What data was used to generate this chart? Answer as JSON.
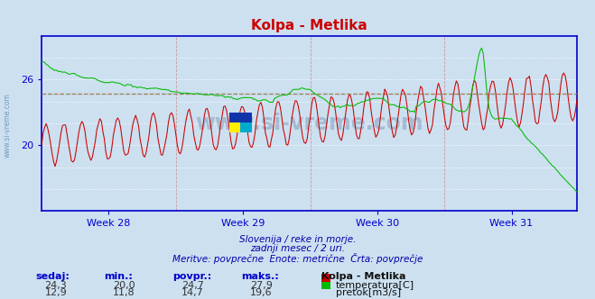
{
  "title": "Kolpa - Metlika",
  "bg_color": "#cce0f0",
  "plot_bg_color": "#cce0f0",
  "grid_color_h": "#ffffff",
  "grid_color_v": "#ddbbcc",
  "axis_color": "#0000cc",
  "title_color": "#cc0000",
  "text_color": "#0000aa",
  "week_labels": [
    "Week 28",
    "Week 29",
    "Week 30",
    "Week 31"
  ],
  "temp_color": "#cc0000",
  "flow_color": "#00bb00",
  "temp_avg_line_color": "#dd6666",
  "flow_avg_line_color": "#88cc88",
  "temp_avg": 24.7,
  "flow_avg": 14.7,
  "temp_min": 20.0,
  "temp_max": 27.9,
  "temp_current": 24.3,
  "flow_min": 11.8,
  "flow_max": 19.6,
  "flow_current": 12.9,
  "flow_povpr": 14.7,
  "subtitle1": "Slovenija / reke in morje.",
  "subtitle2": "zadnji mesec / 2 uri.",
  "subtitle3": "Meritve: povprečne  Enote: metrične  Črta: povprečje",
  "legend_title": "Kolpa - Metlika",
  "label_temp": "temperatura[C]",
  "label_flow": "pretok[m3/s]",
  "col_sedaj": "sedaj:",
  "col_min": "min.:",
  "col_povpr": "povpr.:",
  "col_maks": "maks.:",
  "n_points": 360,
  "temp_ylim": [
    14,
    30
  ],
  "flow_ylim": [
    0,
    22
  ],
  "ytick_vals": [
    20,
    26
  ],
  "week_positions_x": [
    0,
    90,
    180,
    270,
    359
  ]
}
